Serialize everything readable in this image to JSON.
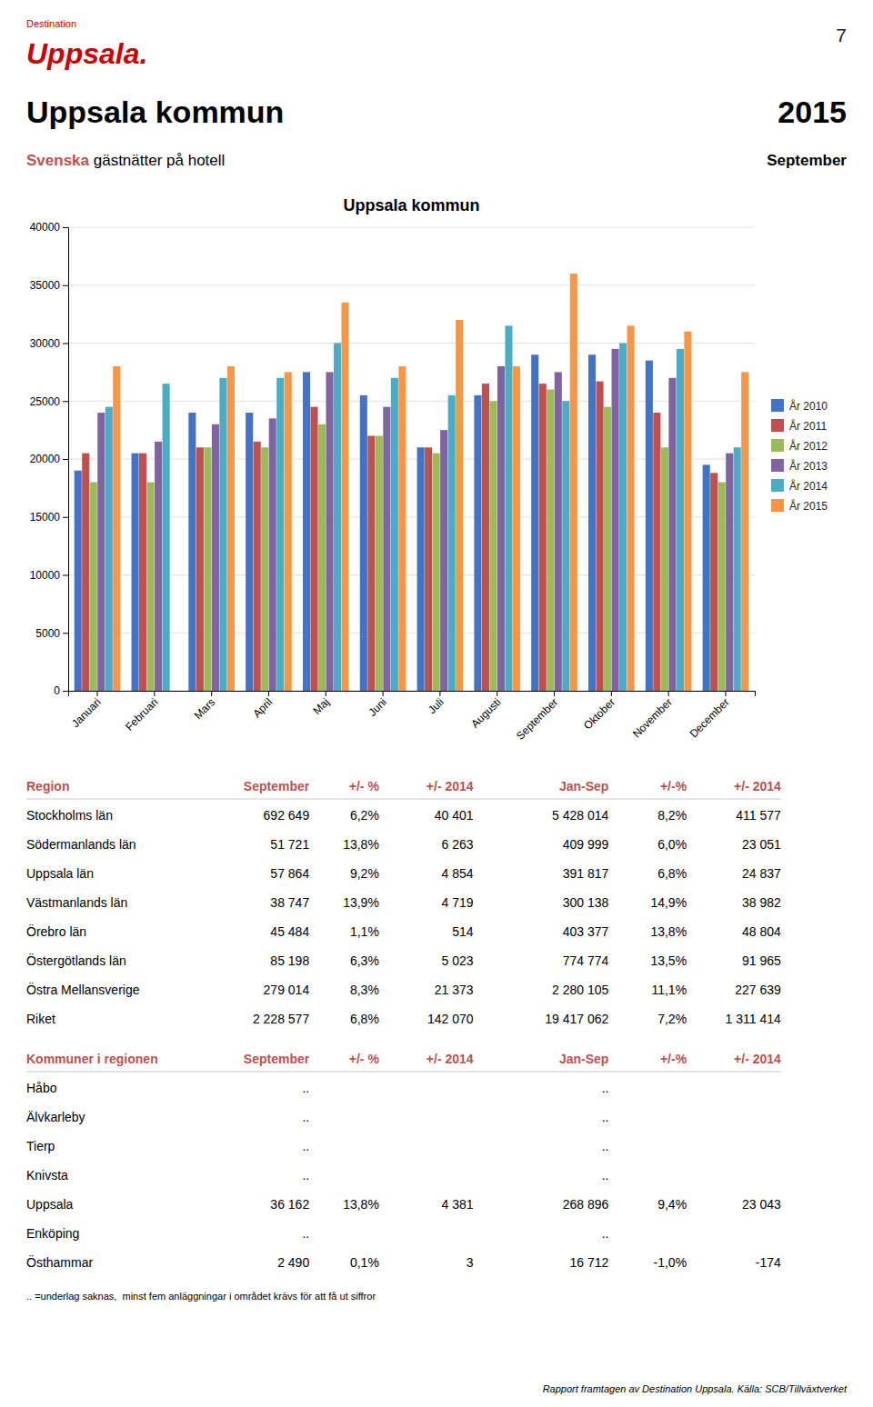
{
  "logo": {
    "small": "Destination",
    "large": "Uppsala.",
    "color": "#CC0000"
  },
  "page_number": "7",
  "title": "Uppsala kommun",
  "year": "2015",
  "subtitle": {
    "red": "Svenska",
    "black": " gästnätter på hotell",
    "period": "September",
    "color": "#C0504D"
  },
  "chart_data": {
    "type": "bar",
    "title": "Uppsala kommun",
    "categories": [
      "Januari",
      "Februari",
      "Mars",
      "April",
      "Maj",
      "Juni",
      "Juli",
      "Augusti",
      "September",
      "Oktober",
      "November",
      "December"
    ],
    "series": [
      {
        "name": "År 2010",
        "color": "#4472C4",
        "values": [
          19000,
          20500,
          24000,
          24000,
          27500,
          25500,
          21000,
          25500,
          29000,
          29000,
          28500,
          19500
        ]
      },
      {
        "name": "År 2011",
        "color": "#C0504D",
        "values": [
          20500,
          20500,
          21000,
          21500,
          24500,
          22000,
          21000,
          26500,
          26500,
          26700,
          24000,
          18800
        ]
      },
      {
        "name": "År 2012",
        "color": "#9BBB59",
        "values": [
          18000,
          18000,
          21000,
          21000,
          23000,
          22000,
          20500,
          25000,
          26000,
          24500,
          21000,
          18000
        ]
      },
      {
        "name": "År 2013",
        "color": "#8064A2",
        "values": [
          24000,
          21500,
          23000,
          23500,
          27500,
          24500,
          22500,
          28000,
          27500,
          29500,
          27000,
          20500
        ]
      },
      {
        "name": "År 2014",
        "color": "#4BACC6",
        "values": [
          24500,
          26500,
          27000,
          27000,
          30000,
          27000,
          25500,
          31500,
          25000,
          30000,
          29500,
          21000
        ]
      },
      {
        "name": "År 2015",
        "color": "#F79646",
        "values": [
          28000,
          0,
          28000,
          27500,
          33500,
          28000,
          32000,
          28000,
          36000,
          31500,
          31000,
          27500
        ]
      }
    ],
    "ylim": [
      0,
      40000
    ],
    "yticks": [
      0,
      5000,
      10000,
      15000,
      20000,
      25000,
      30000,
      35000,
      40000
    ],
    "grid": true,
    "legend": "right"
  },
  "tables": [
    {
      "color": "#C0504D",
      "header": [
        "Region",
        "September",
        "+/- %",
        "+/- 2014",
        "Jan-Sep",
        "+/-%",
        "+/- 2014"
      ],
      "rows": [
        [
          "Stockholms län",
          "692 649",
          "6,2%",
          "40 401",
          "5 428 014",
          "8,2%",
          "411 577"
        ],
        [
          "Södermanlands län",
          "51 721",
          "13,8%",
          "6 263",
          "409 999",
          "6,0%",
          "23 051"
        ],
        [
          "Uppsala län",
          "57 864",
          "9,2%",
          "4 854",
          "391 817",
          "6,8%",
          "24 837"
        ],
        [
          "Västmanlands län",
          "38 747",
          "13,9%",
          "4 719",
          "300 138",
          "14,9%",
          "38 982"
        ],
        [
          "Örebro län",
          "45 484",
          "1,1%",
          "514",
          "403 377",
          "13,8%",
          "48 804"
        ],
        [
          "Östergötlands län",
          "85 198",
          "6,3%",
          "5 023",
          "774 774",
          "13,5%",
          "91 965"
        ],
        [
          "Östra Mellansverige",
          "279 014",
          "8,3%",
          "21 373",
          "2 280 105",
          "11,1%",
          "227 639"
        ],
        [
          "Riket",
          "2 228 577",
          "6,8%",
          "142 070",
          "19 417 062",
          "7,2%",
          "1 311 414"
        ]
      ]
    },
    {
      "color": "#C0504D",
      "header": [
        "Kommuner i regionen",
        "September",
        "+/- %",
        "+/- 2014",
        "Jan-Sep",
        "+/-%",
        "+/- 2014"
      ],
      "rows": [
        [
          "Håbo",
          "..",
          null,
          null,
          "..",
          null,
          null
        ],
        [
          "Älvkarleby",
          "..",
          null,
          null,
          "..",
          null,
          null
        ],
        [
          "Tierp",
          "..",
          null,
          null,
          "..",
          null,
          null
        ],
        [
          "Knivsta",
          "..",
          null,
          null,
          "..",
          null,
          null
        ],
        [
          "Uppsala",
          "36 162",
          "13,8%",
          "4 381",
          "268 896",
          "9,4%",
          "23 043"
        ],
        [
          "Enköping",
          "..",
          null,
          null,
          "..",
          null,
          null
        ],
        [
          "Östhammar",
          "2 490",
          "0,1%",
          "3",
          "16 712",
          "-1,0%",
          "-174"
        ]
      ]
    }
  ],
  "footer_note": ".. =underlag saknas,  minst fem anläggningar i området krävs för att få ut siffror",
  "footer_source": "Rapport framtagen av Destination Uppsala. Källa: SCB/Tillväxtverket"
}
